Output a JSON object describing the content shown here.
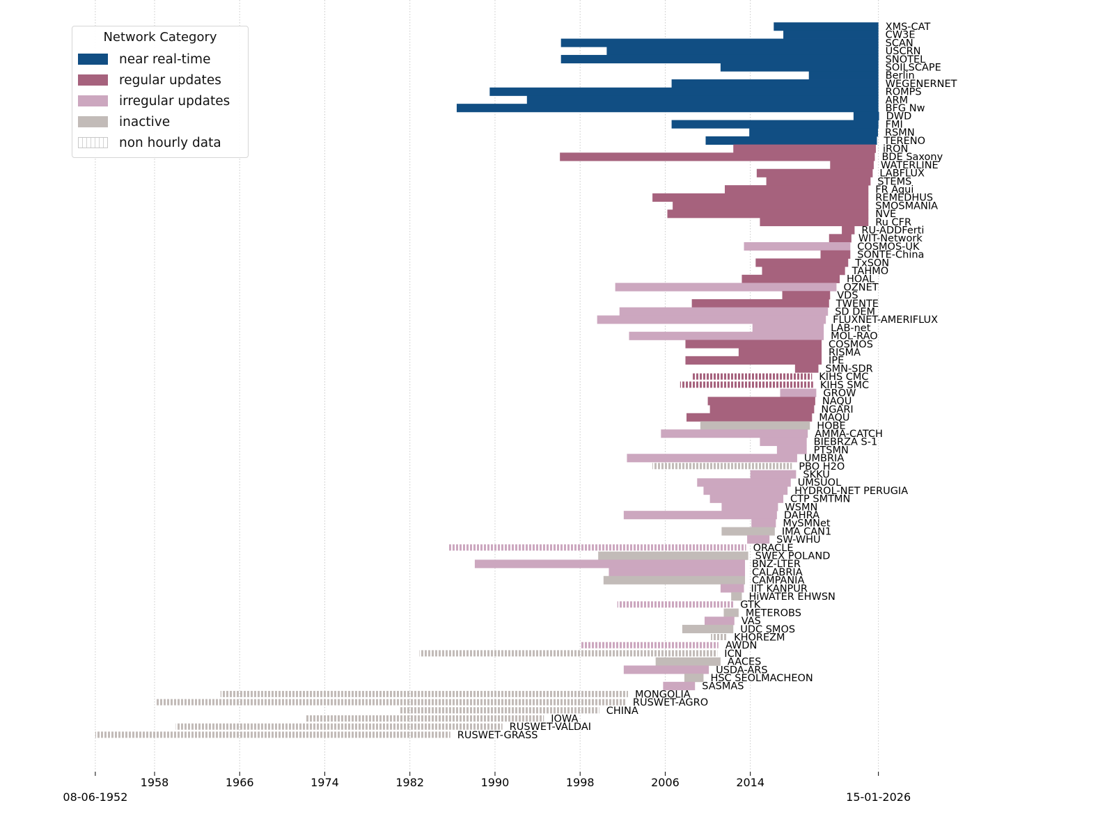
{
  "chart_data": {
    "type": "bar",
    "orientation": "horizontal-timeline",
    "title": "",
    "xlabel": "",
    "ylabel": "",
    "xlim": [
      1952.43,
      2026.04
    ],
    "grid": "vertical-dotted",
    "legend_position": "top-left",
    "x_ticks": [
      1958,
      1966,
      1974,
      1982,
      1990,
      1998,
      2006,
      2014
    ],
    "x_tick_labels": [
      "1958",
      "1966",
      "1974",
      "1982",
      "1990",
      "1998",
      "2006",
      "2014"
    ],
    "x_extra_ticks": [
      {
        "value": 1952.43,
        "label": "08-06-1952"
      },
      {
        "value": 2026.04,
        "label": "15-01-2026"
      }
    ],
    "legend": {
      "title": "Network Category",
      "entries": [
        {
          "key": "nrt",
          "label": "near real-time",
          "color": "#114e83"
        },
        {
          "key": "regular",
          "label": "regular updates",
          "color": "#a6627d"
        },
        {
          "key": "irregular",
          "label": "irregular updates",
          "color": "#cca7bf"
        },
        {
          "key": "inactive",
          "label": "inactive",
          "color": "#c2bbb8"
        },
        {
          "key": "nonhourly",
          "label": "non hourly data",
          "color": "#d2d2d2",
          "hatched": true
        }
      ]
    },
    "series": [
      {
        "name": "XMS-CAT",
        "start": 2016.2,
        "end": 2026.04,
        "category": "nrt",
        "hourly": true
      },
      {
        "name": "CW3E",
        "start": 2017.1,
        "end": 2026.04,
        "category": "nrt",
        "hourly": true
      },
      {
        "name": "SCAN",
        "start": 1996.2,
        "end": 2026.04,
        "category": "nrt",
        "hourly": true
      },
      {
        "name": "USCRN",
        "start": 2000.5,
        "end": 2026.04,
        "category": "nrt",
        "hourly": true
      },
      {
        "name": "SNOTEL",
        "start": 1996.2,
        "end": 2026.04,
        "category": "nrt",
        "hourly": true
      },
      {
        "name": "SOILSCAPE",
        "start": 2011.2,
        "end": 2026.04,
        "category": "nrt",
        "hourly": true
      },
      {
        "name": "Berlin",
        "start": 2019.5,
        "end": 2026.04,
        "category": "nrt",
        "hourly": true
      },
      {
        "name": "WEGENERNET",
        "start": 2006.6,
        "end": 2026.04,
        "category": "nrt",
        "hourly": true
      },
      {
        "name": "ROMPS",
        "start": 1989.5,
        "end": 2026.04,
        "category": "nrt",
        "hourly": true
      },
      {
        "name": "ARM",
        "start": 1993.0,
        "end": 2026.04,
        "category": "nrt",
        "hourly": true
      },
      {
        "name": "BFG Nw",
        "start": 1986.4,
        "end": 2026.04,
        "category": "nrt",
        "hourly": true
      },
      {
        "name": "DWD",
        "start": 2023.7,
        "end": 2026.1,
        "category": "nrt",
        "hourly": true
      },
      {
        "name": "FMI",
        "start": 2006.6,
        "end": 2026.04,
        "category": "nrt",
        "hourly": true
      },
      {
        "name": "RSMN",
        "start": 2013.9,
        "end": 2026.0,
        "category": "nrt",
        "hourly": true
      },
      {
        "name": "TERENO",
        "start": 2009.8,
        "end": 2025.9,
        "category": "nrt",
        "hourly": true
      },
      {
        "name": "iRON",
        "start": 2012.4,
        "end": 2025.8,
        "category": "regular",
        "hourly": true
      },
      {
        "name": "BDE Saxony",
        "start": 1996.1,
        "end": 2025.7,
        "category": "regular",
        "hourly": true
      },
      {
        "name": "WATERLINE",
        "start": 2021.5,
        "end": 2025.6,
        "category": "regular",
        "hourly": true
      },
      {
        "name": "LABFLUX",
        "start": 2014.6,
        "end": 2025.5,
        "category": "regular",
        "hourly": true
      },
      {
        "name": "STEMS",
        "start": 2015.5,
        "end": 2025.3,
        "category": "regular",
        "hourly": true
      },
      {
        "name": "FR Aqui",
        "start": 2011.6,
        "end": 2025.1,
        "category": "regular",
        "hourly": true
      },
      {
        "name": "REMEDHUS",
        "start": 2004.8,
        "end": 2025.1,
        "category": "regular",
        "hourly": true
      },
      {
        "name": "SMOSMANIA",
        "start": 2006.7,
        "end": 2025.1,
        "category": "regular",
        "hourly": true
      },
      {
        "name": "NVE",
        "start": 2006.2,
        "end": 2025.1,
        "category": "regular",
        "hourly": true
      },
      {
        "name": "Ru CFR",
        "start": 2014.9,
        "end": 2025.1,
        "category": "regular",
        "hourly": true
      },
      {
        "name": "RU-ADDFerti",
        "start": 2022.6,
        "end": 2023.8,
        "category": "regular",
        "hourly": true
      },
      {
        "name": "WIT-Network",
        "start": 2021.4,
        "end": 2023.5,
        "category": "regular",
        "hourly": true
      },
      {
        "name": "COSMOS-UK",
        "start": 2013.4,
        "end": 2023.4,
        "category": "irregular",
        "hourly": true
      },
      {
        "name": "SONTE-China",
        "start": 2020.6,
        "end": 2023.4,
        "category": "regular",
        "hourly": true
      },
      {
        "name": "TxSON",
        "start": 2014.5,
        "end": 2023.2,
        "category": "regular",
        "hourly": true
      },
      {
        "name": "TAHMO",
        "start": 2015.1,
        "end": 2022.9,
        "category": "regular",
        "hourly": true
      },
      {
        "name": "HOAL",
        "start": 2013.2,
        "end": 2022.4,
        "category": "regular",
        "hourly": true
      },
      {
        "name": "OZNET",
        "start": 2001.3,
        "end": 2022.1,
        "category": "irregular",
        "hourly": true
      },
      {
        "name": "VDS",
        "start": 2017.0,
        "end": 2021.5,
        "category": "regular",
        "hourly": true
      },
      {
        "name": "TWENTE",
        "start": 2008.5,
        "end": 2021.4,
        "category": "regular",
        "hourly": true
      },
      {
        "name": "SD DEM",
        "start": 2001.7,
        "end": 2021.3,
        "category": "irregular",
        "hourly": true
      },
      {
        "name": "FLUXNET-AMERIFLUX",
        "start": 1999.6,
        "end": 2021.1,
        "category": "irregular",
        "hourly": true
      },
      {
        "name": "LAB-net",
        "start": 2014.2,
        "end": 2020.9,
        "category": "irregular",
        "hourly": true
      },
      {
        "name": "MOL-RAO",
        "start": 2002.6,
        "end": 2020.9,
        "category": "irregular",
        "hourly": true
      },
      {
        "name": "COSMOS",
        "start": 2007.9,
        "end": 2020.7,
        "category": "regular",
        "hourly": true
      },
      {
        "name": "RISMA",
        "start": 2012.9,
        "end": 2020.7,
        "category": "regular",
        "hourly": true
      },
      {
        "name": "IPE",
        "start": 2007.9,
        "end": 2020.7,
        "category": "regular",
        "hourly": true
      },
      {
        "name": "SMN-SDR",
        "start": 2018.2,
        "end": 2020.4,
        "category": "regular",
        "hourly": true
      },
      {
        "name": "KIHS CMC",
        "start": 2008.5,
        "end": 2019.8,
        "category": "regular",
        "hourly": false
      },
      {
        "name": "KIHS SMC",
        "start": 2007.4,
        "end": 2019.9,
        "category": "regular",
        "hourly": false
      },
      {
        "name": "GROW",
        "start": 2016.8,
        "end": 2020.2,
        "category": "irregular",
        "hourly": true
      },
      {
        "name": "NAQU",
        "start": 2010.0,
        "end": 2020.1,
        "category": "regular",
        "hourly": true
      },
      {
        "name": "NGARI",
        "start": 2010.2,
        "end": 2020.0,
        "category": "regular",
        "hourly": true
      },
      {
        "name": "MAQU",
        "start": 2008.0,
        "end": 2019.8,
        "category": "regular",
        "hourly": true
      },
      {
        "name": "HOBE",
        "start": 2009.3,
        "end": 2019.6,
        "category": "inactive",
        "hourly": true
      },
      {
        "name": "AMMA-CATCH",
        "start": 2005.6,
        "end": 2019.4,
        "category": "irregular",
        "hourly": true
      },
      {
        "name": "BIEBRZA S-1",
        "start": 2014.9,
        "end": 2019.3,
        "category": "irregular",
        "hourly": true
      },
      {
        "name": "PTSMN",
        "start": 2016.5,
        "end": 2019.3,
        "category": "irregular",
        "hourly": true
      },
      {
        "name": "UMBRIA",
        "start": 2002.4,
        "end": 2018.4,
        "category": "irregular",
        "hourly": true
      },
      {
        "name": "PBO H2O",
        "start": 2004.8,
        "end": 2017.9,
        "category": "inactive",
        "hourly": false
      },
      {
        "name": "SKKU",
        "start": 2014.0,
        "end": 2018.3,
        "category": "irregular",
        "hourly": true
      },
      {
        "name": "UMSUOL",
        "start": 2009.0,
        "end": 2017.8,
        "category": "irregular",
        "hourly": true
      },
      {
        "name": "HYDROL-NET PERUGIA",
        "start": 2009.6,
        "end": 2017.5,
        "category": "irregular",
        "hourly": true
      },
      {
        "name": "CTP SMTMN",
        "start": 2010.2,
        "end": 2017.1,
        "category": "irregular",
        "hourly": true
      },
      {
        "name": "WSMN",
        "start": 2011.3,
        "end": 2016.6,
        "category": "irregular",
        "hourly": true
      },
      {
        "name": "DAHRA",
        "start": 2002.1,
        "end": 2016.5,
        "category": "irregular",
        "hourly": true
      },
      {
        "name": "MySMNet",
        "start": 2014.1,
        "end": 2016.4,
        "category": "irregular",
        "hourly": true
      },
      {
        "name": "IMA CAN1",
        "start": 2011.3,
        "end": 2016.3,
        "category": "inactive",
        "hourly": true
      },
      {
        "name": "SW-WHU",
        "start": 2013.7,
        "end": 2015.8,
        "category": "irregular",
        "hourly": true
      },
      {
        "name": "ORACLE",
        "start": 1985.6,
        "end": 2013.6,
        "category": "irregular",
        "hourly": false
      },
      {
        "name": "SWEX POLAND",
        "start": 1999.7,
        "end": 2013.8,
        "category": "inactive",
        "hourly": true
      },
      {
        "name": "BNZ-LTER",
        "start": 1988.1,
        "end": 2013.5,
        "category": "irregular",
        "hourly": true
      },
      {
        "name": "CALABRIA",
        "start": 2000.7,
        "end": 2013.5,
        "category": "irregular",
        "hourly": true
      },
      {
        "name": "CAMPANIA",
        "start": 2000.2,
        "end": 2013.5,
        "category": "inactive",
        "hourly": true
      },
      {
        "name": "IIT KANPUR",
        "start": 2011.2,
        "end": 2013.4,
        "category": "irregular",
        "hourly": true
      },
      {
        "name": "HiWATER EHWSN",
        "start": 2012.2,
        "end": 2013.2,
        "category": "inactive",
        "hourly": true
      },
      {
        "name": "GTK",
        "start": 2001.5,
        "end": 2012.4,
        "category": "irregular",
        "hourly": false
      },
      {
        "name": "METEROBS",
        "start": 2011.5,
        "end": 2012.9,
        "category": "inactive",
        "hourly": true
      },
      {
        "name": "VAS",
        "start": 2009.7,
        "end": 2012.5,
        "category": "irregular",
        "hourly": true
      },
      {
        "name": "UDC SMOS",
        "start": 2007.6,
        "end": 2012.4,
        "category": "inactive",
        "hourly": true
      },
      {
        "name": "KHOREZM",
        "start": 2010.3,
        "end": 2011.8,
        "category": "inactive",
        "hourly": false
      },
      {
        "name": "AWDN",
        "start": 1998.0,
        "end": 2011.0,
        "category": "irregular",
        "hourly": false
      },
      {
        "name": "ICN",
        "start": 1982.9,
        "end": 2010.9,
        "category": "inactive",
        "hourly": false
      },
      {
        "name": "AACES",
        "start": 2005.1,
        "end": 2011.2,
        "category": "inactive",
        "hourly": true
      },
      {
        "name": "USDA-ARS",
        "start": 2002.1,
        "end": 2010.1,
        "category": "irregular",
        "hourly": true
      },
      {
        "name": "HSC SEOLMACHEON",
        "start": 2007.8,
        "end": 2009.6,
        "category": "inactive",
        "hourly": true
      },
      {
        "name": "SASMAS",
        "start": 2005.8,
        "end": 2008.8,
        "category": "irregular",
        "hourly": true
      },
      {
        "name": "MONGOLIA",
        "start": 1964.2,
        "end": 2002.5,
        "category": "inactive",
        "hourly": false
      },
      {
        "name": "RUSWET-AGRO",
        "start": 1958.2,
        "end": 2002.3,
        "category": "inactive",
        "hourly": false
      },
      {
        "name": "CHINA",
        "start": 1981.0,
        "end": 1999.8,
        "category": "inactive",
        "hourly": false
      },
      {
        "name": "IOWA",
        "start": 1972.2,
        "end": 1994.6,
        "category": "inactive",
        "hourly": false
      },
      {
        "name": "RUSWET-VALDAI",
        "start": 1960.0,
        "end": 1990.7,
        "category": "inactive",
        "hourly": false
      },
      {
        "name": "RUSWET-GRASS",
        "start": 1952.43,
        "end": 1985.8,
        "category": "inactive",
        "hourly": false
      }
    ]
  }
}
